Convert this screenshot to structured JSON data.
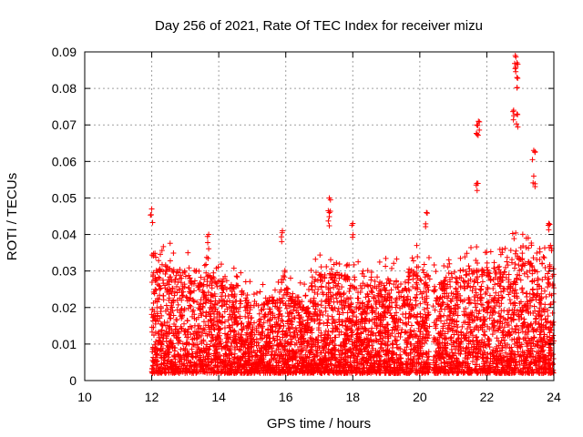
{
  "chart_data": {
    "type": "scatter",
    "title": "Day 256 of 2021, Rate Of TEC Index for receiver mizu",
    "xlabel": "GPS time / hours",
    "ylabel": "ROTI / TECUs",
    "xlim": [
      10,
      24
    ],
    "ylim": [
      0,
      0.09
    ],
    "xticks": [
      "10",
      "12",
      "14",
      "16",
      "18",
      "20",
      "22",
      "24"
    ],
    "yticks": [
      "0",
      "0.01",
      "0.02",
      "0.03",
      "0.04",
      "0.05",
      "0.06",
      "0.07",
      "0.08",
      "0.09"
    ],
    "grid": true,
    "marker": "+",
    "series_color": "#ff0000",
    "data_coverage": {
      "x_start": 12.0,
      "x_end": 24.0,
      "gap": [
        20.3,
        20.4
      ]
    },
    "notable_points": [
      {
        "x": 12.0,
        "y": 0.047
      },
      {
        "x": 13.7,
        "y": 0.04
      },
      {
        "x": 15.9,
        "y": 0.041
      },
      {
        "x": 17.3,
        "y": 0.05
      },
      {
        "x": 17.3,
        "y": 0.046
      },
      {
        "x": 18.0,
        "y": 0.043
      },
      {
        "x": 20.2,
        "y": 0.046
      },
      {
        "x": 21.7,
        "y": 0.07
      },
      {
        "x": 21.75,
        "y": 0.071
      },
      {
        "x": 21.7,
        "y": 0.054
      },
      {
        "x": 22.8,
        "y": 0.074
      },
      {
        "x": 22.85,
        "y": 0.089
      },
      {
        "x": 22.9,
        "y": 0.087
      },
      {
        "x": 22.9,
        "y": 0.083
      },
      {
        "x": 22.9,
        "y": 0.073
      },
      {
        "x": 23.4,
        "y": 0.063
      },
      {
        "x": 23.4,
        "y": 0.056
      },
      {
        "x": 23.85,
        "y": 0.043
      },
      {
        "x": 23.9,
        "y": 0.037
      }
    ],
    "envelope": [
      {
        "x": 12.0,
        "upper": 0.03
      },
      {
        "x": 12.5,
        "upper": 0.032
      },
      {
        "x": 13.0,
        "upper": 0.03
      },
      {
        "x": 13.5,
        "upper": 0.03
      },
      {
        "x": 14.0,
        "upper": 0.028
      },
      {
        "x": 14.5,
        "upper": 0.027
      },
      {
        "x": 15.0,
        "upper": 0.022
      },
      {
        "x": 15.5,
        "upper": 0.022
      },
      {
        "x": 16.0,
        "upper": 0.026
      },
      {
        "x": 16.5,
        "upper": 0.022
      },
      {
        "x": 17.0,
        "upper": 0.03
      },
      {
        "x": 17.5,
        "upper": 0.03
      },
      {
        "x": 18.0,
        "upper": 0.028
      },
      {
        "x": 18.5,
        "upper": 0.026
      },
      {
        "x": 19.0,
        "upper": 0.028
      },
      {
        "x": 19.5,
        "upper": 0.03
      },
      {
        "x": 20.0,
        "upper": 0.032
      },
      {
        "x": 20.5,
        "upper": 0.026
      },
      {
        "x": 21.0,
        "upper": 0.03
      },
      {
        "x": 21.5,
        "upper": 0.032
      },
      {
        "x": 22.0,
        "upper": 0.03
      },
      {
        "x": 22.5,
        "upper": 0.032
      },
      {
        "x": 23.0,
        "upper": 0.035
      },
      {
        "x": 23.5,
        "upper": 0.03
      },
      {
        "x": 24.0,
        "upper": 0.032
      }
    ],
    "baseline_floor": 0.002
  }
}
